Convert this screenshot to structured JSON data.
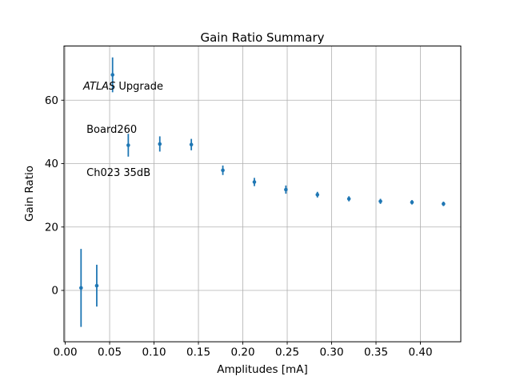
{
  "chart_data": {
    "type": "scatter",
    "title": "Gain Ratio Summary",
    "xlabel": "Amplitudes [mA]",
    "ylabel": "Gain Ratio",
    "xlim": [
      -0.0014,
      0.4455
    ],
    "ylim": [
      -16.2,
      77.1
    ],
    "xticks": [
      0.0,
      0.05,
      0.1,
      0.15,
      0.2,
      0.25,
      0.3,
      0.35,
      0.4
    ],
    "xtick_labels": [
      "0.00",
      "0.05",
      "0.10",
      "0.15",
      "0.20",
      "0.25",
      "0.30",
      "0.35",
      "0.40"
    ],
    "yticks": [
      0,
      20,
      40,
      60
    ],
    "ytick_labels": [
      "0",
      "20",
      "40",
      "60"
    ],
    "grid": true,
    "legend_position": "none",
    "annotation": {
      "line1_italic": "ATLAS",
      "line1_rest": " Upgrade",
      "line2": " Board260",
      "line3": " Ch023 35dB"
    },
    "colors": {
      "marker": "#1f77b4",
      "grid": "#b0b0b0",
      "spine": "#000000",
      "background": "#ffffff"
    },
    "series": [
      {
        "name": "gain-ratio-vs-amplitude",
        "marker": "circle",
        "color": "#1f77b4",
        "points": [
          {
            "x": 0.0178,
            "y": 0.8,
            "yerr": 12.3
          },
          {
            "x": 0.0355,
            "y": 1.5,
            "yerr": 6.6
          },
          {
            "x": 0.0533,
            "y": 68.0,
            "yerr": 5.5
          },
          {
            "x": 0.071,
            "y": 45.8,
            "yerr": 3.6
          },
          {
            "x": 0.1065,
            "y": 46.2,
            "yerr": 2.4
          },
          {
            "x": 0.142,
            "y": 46.0,
            "yerr": 1.8
          },
          {
            "x": 0.1775,
            "y": 37.9,
            "yerr": 1.5
          },
          {
            "x": 0.213,
            "y": 34.2,
            "yerr": 1.3
          },
          {
            "x": 0.2485,
            "y": 31.8,
            "yerr": 1.3
          },
          {
            "x": 0.284,
            "y": 30.2,
            "yerr": 0.9
          },
          {
            "x": 0.3195,
            "y": 28.9,
            "yerr": 0.8
          },
          {
            "x": 0.355,
            "y": 28.1,
            "yerr": 0.8
          },
          {
            "x": 0.3905,
            "y": 27.8,
            "yerr": 0.7
          },
          {
            "x": 0.426,
            "y": 27.3,
            "yerr": 0.7
          }
        ]
      }
    ]
  }
}
